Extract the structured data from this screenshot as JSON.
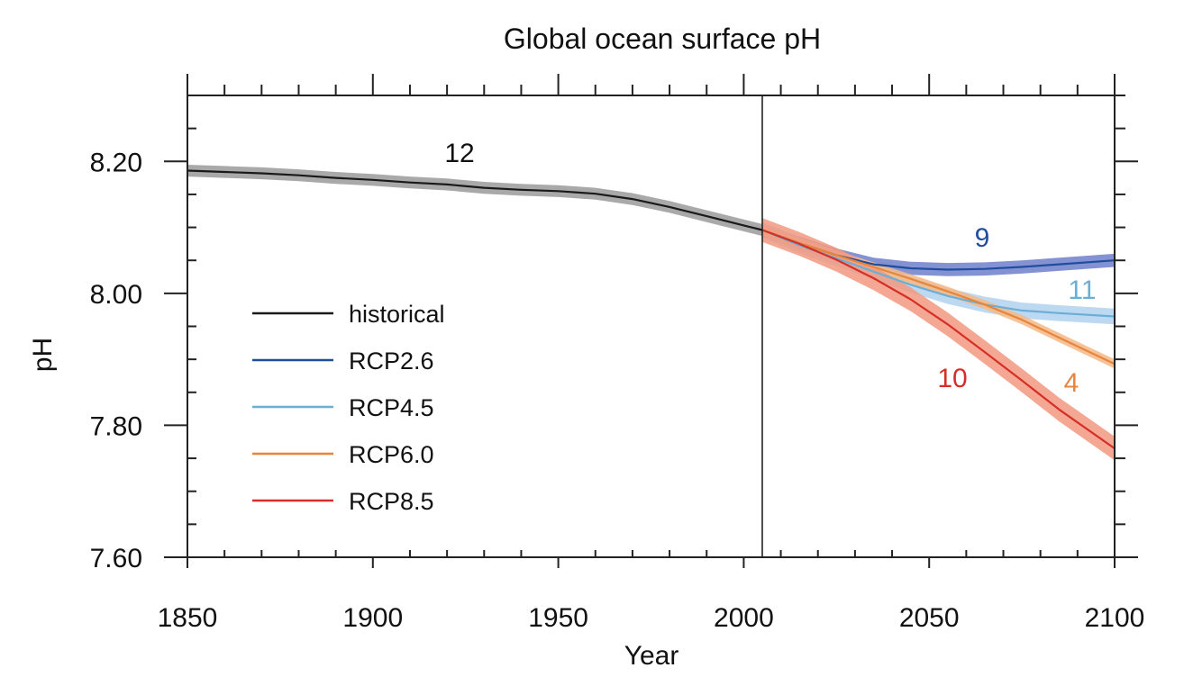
{
  "chart_data": {
    "type": "line",
    "title": "Global ocean surface pH",
    "xlabel": "Year",
    "ylabel": "pH",
    "xlim": [
      1850,
      2100
    ],
    "ylim": [
      7.6,
      8.3
    ],
    "x_ticks": [
      "1850",
      "1900",
      "1950",
      "2000",
      "2050",
      "2100"
    ],
    "y_ticks": [
      "7.60",
      "7.80",
      "8.00",
      "8.20"
    ],
    "divider_year": 2005,
    "legend_position": "lower-left",
    "grid": false,
    "series": [
      {
        "name": "historical",
        "color": "#1a1a1a",
        "band_color": "#9a9a9a",
        "model_count": "12",
        "points": [
          [
            1850,
            8.186
          ],
          [
            1860,
            8.184
          ],
          [
            1870,
            8.182
          ],
          [
            1880,
            8.179
          ],
          [
            1890,
            8.175
          ],
          [
            1900,
            8.172
          ],
          [
            1910,
            8.168
          ],
          [
            1920,
            8.165
          ],
          [
            1930,
            8.16
          ],
          [
            1940,
            8.157
          ],
          [
            1950,
            8.155
          ],
          [
            1960,
            8.151
          ],
          [
            1970,
            8.143
          ],
          [
            1980,
            8.131
          ],
          [
            1990,
            8.117
          ],
          [
            2000,
            8.103
          ],
          [
            2005,
            8.096
          ]
        ],
        "band_halfwidth": 0.009
      },
      {
        "name": "RCP2.6",
        "color": "#1f4e9c",
        "band_color": "#6f7fcc",
        "model_count": "9",
        "points": [
          [
            2005,
            8.096
          ],
          [
            2015,
            8.076
          ],
          [
            2025,
            8.058
          ],
          [
            2035,
            8.044
          ],
          [
            2045,
            8.038
          ],
          [
            2055,
            8.036
          ],
          [
            2065,
            8.037
          ],
          [
            2075,
            8.04
          ],
          [
            2085,
            8.044
          ],
          [
            2100,
            8.05
          ]
        ],
        "band_halfwidth": 0.01
      },
      {
        "name": "RCP4.5",
        "color": "#6baed6",
        "band_color": "#b0d2ee",
        "model_count": "11",
        "points": [
          [
            2005,
            8.096
          ],
          [
            2015,
            8.073
          ],
          [
            2025,
            8.053
          ],
          [
            2035,
            8.033
          ],
          [
            2045,
            8.013
          ],
          [
            2055,
            7.996
          ],
          [
            2065,
            7.983
          ],
          [
            2075,
            7.974
          ],
          [
            2085,
            7.97
          ],
          [
            2100,
            7.965
          ]
        ],
        "band_halfwidth": 0.012
      },
      {
        "name": "RCP6.0",
        "color": "#e8853d",
        "band_color": "#f5b886",
        "model_count": "4",
        "points": [
          [
            2005,
            8.096
          ],
          [
            2015,
            8.076
          ],
          [
            2025,
            8.058
          ],
          [
            2035,
            8.04
          ],
          [
            2045,
            8.022
          ],
          [
            2055,
            8.003
          ],
          [
            2065,
            7.983
          ],
          [
            2075,
            7.96
          ],
          [
            2085,
            7.933
          ],
          [
            2100,
            7.893
          ]
        ],
        "band_halfwidth": 0.007
      },
      {
        "name": "RCP8.5",
        "color": "#d62f27",
        "band_color": "#f29980",
        "model_count": "10",
        "points": [
          [
            2005,
            8.096
          ],
          [
            2015,
            8.075
          ],
          [
            2025,
            8.051
          ],
          [
            2035,
            8.023
          ],
          [
            2045,
            7.991
          ],
          [
            2055,
            7.953
          ],
          [
            2065,
            7.911
          ],
          [
            2075,
            7.868
          ],
          [
            2085,
            7.824
          ],
          [
            2100,
            7.765
          ]
        ],
        "band_halfwidth": 0.018
      }
    ]
  }
}
